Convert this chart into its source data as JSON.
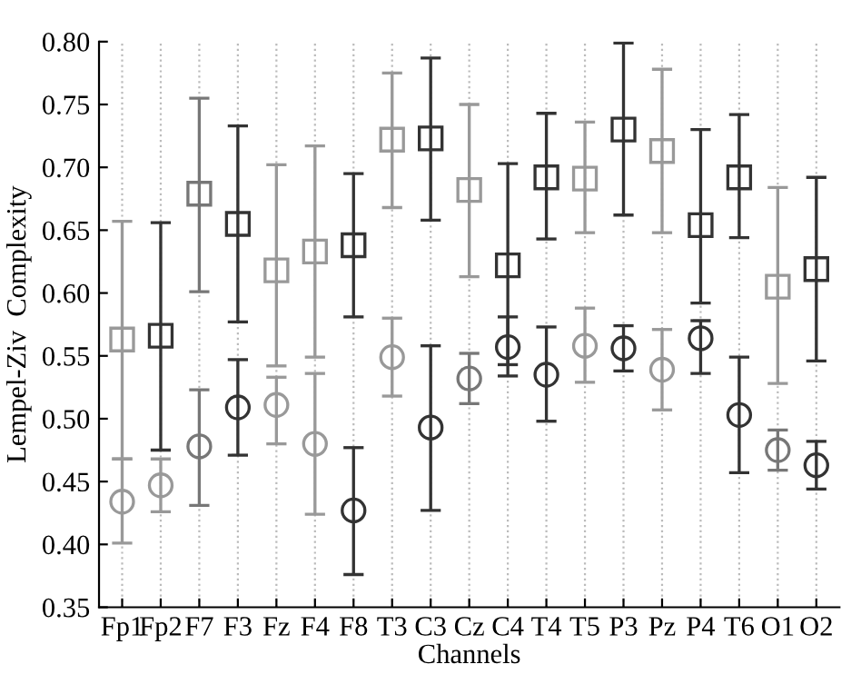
{
  "chart_data": {
    "type": "scatter",
    "xlabel": "Channels",
    "ylabel": "Lempel-Ziv  Complexity",
    "categories": [
      "Fp1",
      "Fp2",
      "F7",
      "F3",
      "Fz",
      "F4",
      "F8",
      "T3",
      "C3",
      "Cz",
      "C4",
      "T4",
      "T5",
      "P3",
      "Pz",
      "P4",
      "T6",
      "O1",
      "O2"
    ],
    "ylim": [
      0.35,
      0.8
    ],
    "yticks": [
      {
        "value": 0.35,
        "label": "0.35"
      },
      {
        "value": 0.4,
        "label": "0.40"
      },
      {
        "value": 0.45,
        "label": "0.45"
      },
      {
        "value": 0.5,
        "label": "0.50"
      },
      {
        "value": 0.55,
        "label": "0.55"
      },
      {
        "value": 0.6,
        "label": "0.60"
      },
      {
        "value": 0.65,
        "label": "0.65"
      },
      {
        "value": 0.7,
        "label": "0.70"
      },
      {
        "value": 0.75,
        "label": "0.75"
      },
      {
        "value": 0.8,
        "label": "0.80"
      }
    ],
    "grid": "x",
    "legend": false,
    "series": [
      {
        "marker": "square",
        "colors": [
          "#999999",
          "#333333",
          "#777777",
          "#333333",
          "#999999",
          "#999999",
          "#333333",
          "#999999",
          "#333333",
          "#999999",
          "#333333",
          "#333333",
          "#999999",
          "#333333",
          "#999999",
          "#333333",
          "#333333",
          "#999999",
          "#333333"
        ],
        "values": [
          0.563,
          0.566,
          0.679,
          0.655,
          0.618,
          0.633,
          0.638,
          0.722,
          0.723,
          0.682,
          0.622,
          0.692,
          0.691,
          0.73,
          0.713,
          0.654,
          0.692,
          0.605,
          0.619
        ],
        "errors": [
          [
            0.468,
            0.657
          ],
          [
            0.475,
            0.656
          ],
          [
            0.601,
            0.755
          ],
          [
            0.577,
            0.733
          ],
          [
            0.542,
            0.702
          ],
          [
            0.549,
            0.717
          ],
          [
            0.581,
            0.695
          ],
          [
            0.668,
            0.775
          ],
          [
            0.658,
            0.787
          ],
          [
            0.613,
            0.75
          ],
          [
            0.543,
            0.703
          ],
          [
            0.643,
            0.743
          ],
          [
            0.648,
            0.736
          ],
          [
            0.662,
            0.799
          ],
          [
            0.648,
            0.778
          ],
          [
            0.592,
            0.73
          ],
          [
            0.644,
            0.742
          ],
          [
            0.528,
            0.684
          ],
          [
            0.546,
            0.692
          ]
        ]
      },
      {
        "marker": "circle",
        "colors": [
          "#999999",
          "#999999",
          "#777777",
          "#333333",
          "#999999",
          "#999999",
          "#333333",
          "#999999",
          "#333333",
          "#777777",
          "#333333",
          "#333333",
          "#999999",
          "#333333",
          "#999999",
          "#333333",
          "#333333",
          "#777777",
          "#333333"
        ],
        "values": [
          0.434,
          0.447,
          0.478,
          0.509,
          0.511,
          0.48,
          0.427,
          0.549,
          0.493,
          0.532,
          0.557,
          0.535,
          0.558,
          0.556,
          0.539,
          0.564,
          0.503,
          0.475,
          0.463
        ],
        "errors": [
          [
            0.401,
            0.468
          ],
          [
            0.426,
            0.468
          ],
          [
            0.431,
            0.523
          ],
          [
            0.471,
            0.547
          ],
          [
            0.48,
            0.533
          ],
          [
            0.424,
            0.536
          ],
          [
            0.376,
            0.477
          ],
          [
            0.518,
            0.58
          ],
          [
            0.427,
            0.558
          ],
          [
            0.512,
            0.552
          ],
          [
            0.534,
            0.581
          ],
          [
            0.498,
            0.573
          ],
          [
            0.529,
            0.588
          ],
          [
            0.538,
            0.574
          ],
          [
            0.507,
            0.571
          ],
          [
            0.536,
            0.578
          ],
          [
            0.457,
            0.549
          ],
          [
            0.459,
            0.491
          ],
          [
            0.444,
            0.482
          ]
        ]
      }
    ]
  }
}
